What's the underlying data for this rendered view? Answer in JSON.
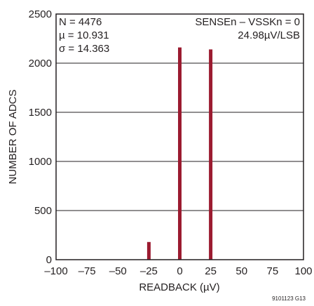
{
  "chart_data": {
    "type": "bar",
    "xlabel": "READBACK (µV)",
    "ylabel": "NUMBER OF ADCS",
    "xlim": [
      -100,
      100
    ],
    "ylim": [
      0,
      2500
    ],
    "xticks": [
      -100,
      -75,
      -50,
      -25,
      0,
      25,
      50,
      75,
      100
    ],
    "xtick_labels": [
      "–100",
      "–75",
      "–50",
      "–25",
      "0",
      "25",
      "50",
      "75",
      "100"
    ],
    "yticks": [
      0,
      500,
      1000,
      1500,
      2000,
      2500
    ],
    "ytick_labels": [
      "0",
      "500",
      "1000",
      "1500",
      "2000",
      "2500"
    ],
    "grid": "horizontal",
    "bar_color": "#9b1b30",
    "bars": [
      {
        "x": -24.98,
        "value": 180
      },
      {
        "x": 0,
        "value": 2160
      },
      {
        "x": 24.98,
        "value": 2140
      }
    ],
    "annotations": {
      "stats": [
        "N = 4476",
        "µ = 10.931",
        "σ = 14.363"
      ],
      "condition": [
        "SENSEn – VSSKn = 0",
        "24.98µV/LSB"
      ]
    },
    "figure_id": "9101123 G13"
  }
}
